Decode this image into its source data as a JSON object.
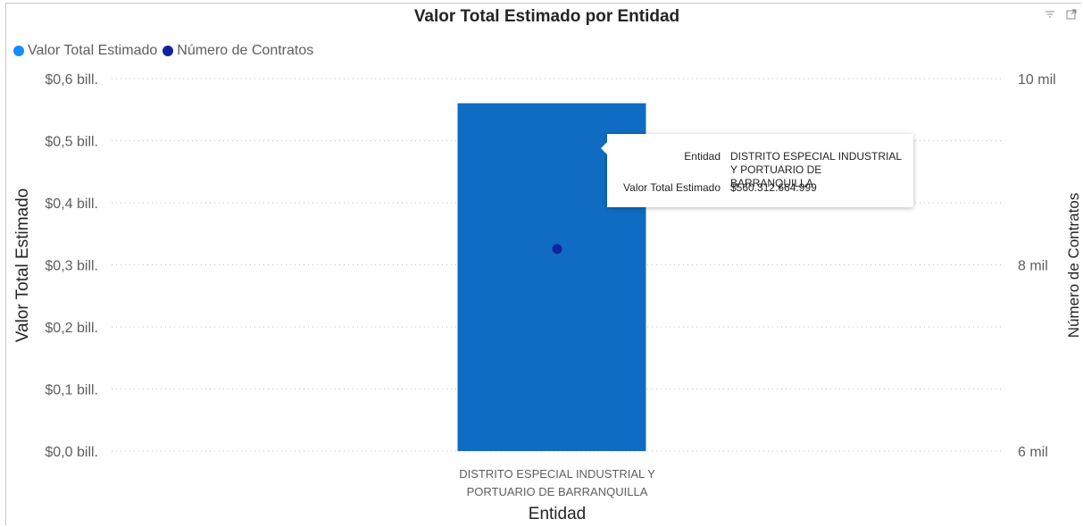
{
  "visual": {
    "title": "Valor Total Estimado por Entidad",
    "icons": [
      "filter-icon",
      "focus-mode-icon"
    ]
  },
  "legend": [
    {
      "label": "Valor Total Estimado",
      "color": "#118DFF"
    },
    {
      "label": "Número de Contratos",
      "color": "#12239E"
    }
  ],
  "tooltip": {
    "rows": [
      {
        "label": "Entidad",
        "value": "DISTRITO ESPECIAL INDUSTRIAL Y PORTUARIO DE BARRANQUILLA"
      },
      {
        "label": "Valor Total Estimado",
        "value": "$560.312.664.999"
      }
    ]
  },
  "chart_data": {
    "type": "bar",
    "title": "Valor Total Estimado por Entidad",
    "xlabel": "Entidad",
    "ylabel": "Valor Total Estimado",
    "y2label": "Número de Contratos",
    "categories": [
      "DISTRITO ESPECIAL INDUSTRIAL Y PORTUARIO DE BARRANQUILLA"
    ],
    "category_label_lines": [
      "DISTRITO ESPECIAL INDUSTRIAL Y",
      "PORTUARIO DE BARRANQUILLA"
    ],
    "series": [
      {
        "name": "Valor Total Estimado",
        "type": "bar",
        "axis": "left",
        "values": [
          560312664999
        ],
        "color": "#0F6CC2"
      },
      {
        "name": "Número de Contratos",
        "type": "scatter",
        "axis": "right",
        "values": [
          8170
        ],
        "color": "#12239E"
      }
    ],
    "ylim": [
      0,
      600000000000
    ],
    "y2lim": [
      6000,
      10000
    ],
    "yticks": [
      {
        "value": 0,
        "label": "$0,0 bill."
      },
      {
        "value": 100000000000,
        "label": "$0,1 bill."
      },
      {
        "value": 200000000000,
        "label": "$0,2 bill."
      },
      {
        "value": 300000000000,
        "label": "$0,3 bill."
      },
      {
        "value": 400000000000,
        "label": "$0,4 bill."
      },
      {
        "value": 500000000000,
        "label": "$0,5 bill."
      },
      {
        "value": 600000000000,
        "label": "$0,6 bill."
      }
    ],
    "y2ticks": [
      {
        "value": 6000,
        "label": "6 mil"
      },
      {
        "value": 8000,
        "label": "8 mil"
      },
      {
        "value": 10000,
        "label": "10 mil"
      }
    ],
    "grid": true,
    "legend_position": "top-left"
  }
}
